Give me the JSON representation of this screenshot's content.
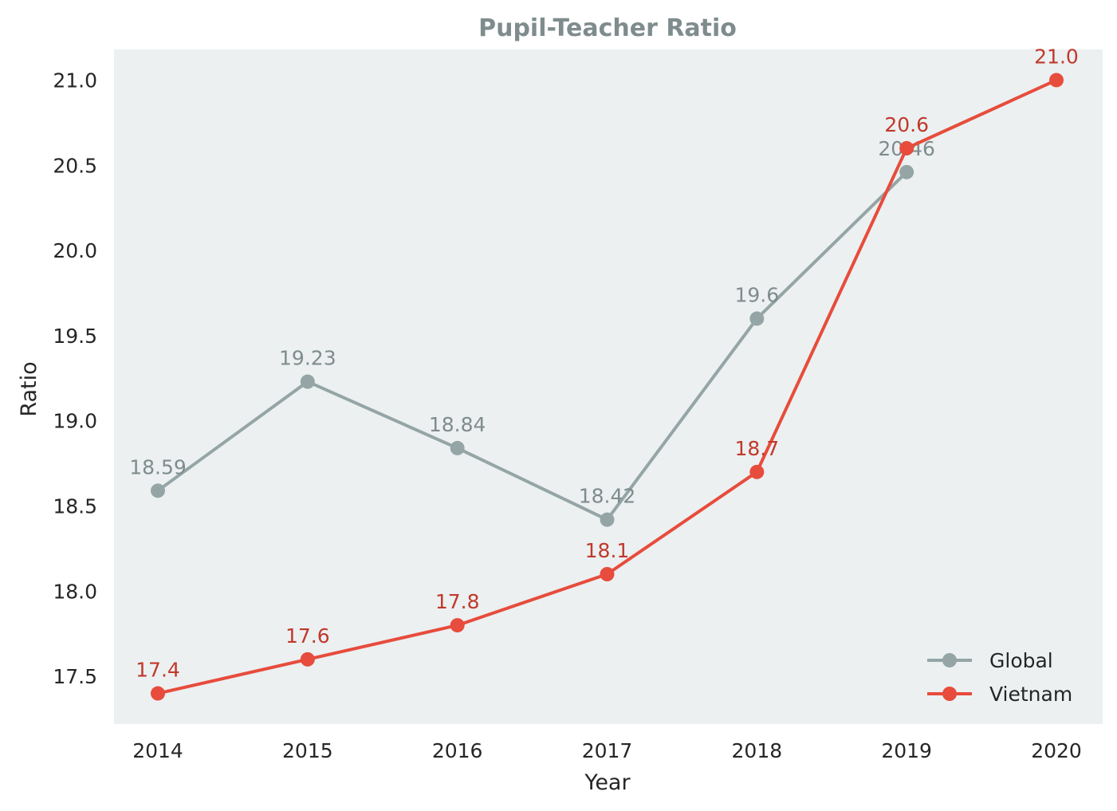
{
  "chart_data": {
    "type": "line",
    "title": "Pupil-Teacher Ratio",
    "xlabel": "Year",
    "ylabel": "Ratio",
    "categories": [
      "2014",
      "2015",
      "2016",
      "2017",
      "2018",
      "2019",
      "2020"
    ],
    "y_ticks": [
      "17.5",
      "18.0",
      "18.5",
      "19.0",
      "19.5",
      "20.0",
      "20.5",
      "21.0"
    ],
    "ylim": [
      17.22,
      21.18
    ],
    "grid": false,
    "legend_position": "bottom-right",
    "series": [
      {
        "name": "Global",
        "color": "#95a5a6",
        "label_color": "#7f8c8d",
        "values": [
          18.59,
          19.23,
          18.84,
          18.42,
          19.6,
          20.46,
          null
        ],
        "labels": [
          "18.59",
          "19.23",
          "18.84",
          "18.42",
          "19.6",
          "20.46",
          null
        ]
      },
      {
        "name": "Vietnam",
        "color": "#e74c3c",
        "label_color": "#c0392b",
        "values": [
          17.4,
          17.6,
          17.8,
          18.1,
          18.7,
          20.6,
          21.0
        ],
        "labels": [
          "17.4",
          "17.6",
          "17.8",
          "18.1",
          "18.7",
          "20.6",
          "21.0"
        ]
      }
    ],
    "colors": {
      "plot_background": "#ecf0f1",
      "title": "#7f8c8d"
    }
  }
}
